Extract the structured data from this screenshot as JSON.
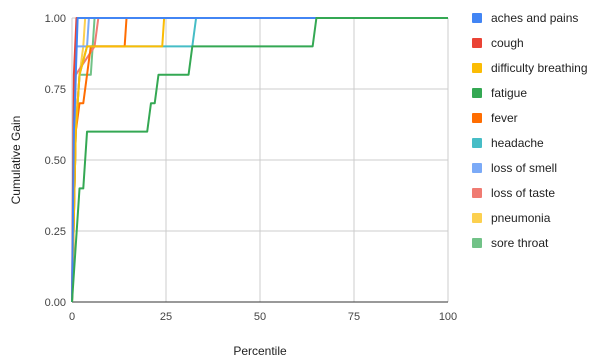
{
  "chart_data": {
    "type": "line",
    "title": "",
    "xlabel": "Percentile",
    "ylabel": "Cumulative Gain",
    "xlim": [
      0,
      100
    ],
    "ylim": [
      0,
      1
    ],
    "x_ticks": [
      "0",
      "25",
      "50",
      "75",
      "100"
    ],
    "y_ticks": [
      "0.00",
      "0.25",
      "0.50",
      "0.75",
      "1.00"
    ],
    "grid": true,
    "legend_position": "right",
    "series": [
      {
        "name": "aches and pains",
        "color": "#4285f4",
        "points": [
          [
            0,
            0
          ],
          [
            0.5,
            0.6
          ],
          [
            1.5,
            1.0
          ],
          [
            100,
            1.0
          ]
        ]
      },
      {
        "name": "cough",
        "color": "#ea4335",
        "points": [
          [
            0,
            0
          ],
          [
            0.5,
            0.8
          ],
          [
            1.2,
            1.0
          ],
          [
            100,
            1.0
          ]
        ]
      },
      {
        "name": "difficulty breathing",
        "color": "#fbbc04",
        "points": [
          [
            0,
            0
          ],
          [
            1,
            0.6
          ],
          [
            2,
            0.8
          ],
          [
            4,
            0.9
          ],
          [
            24,
            0.9
          ],
          [
            24.5,
            1.0
          ],
          [
            100,
            1.0
          ]
        ]
      },
      {
        "name": "fatigue",
        "color": "#34a853",
        "points": [
          [
            0,
            0
          ],
          [
            2,
            0.4
          ],
          [
            3,
            0.4
          ],
          [
            4,
            0.6
          ],
          [
            20,
            0.6
          ],
          [
            21,
            0.7
          ],
          [
            22,
            0.7
          ],
          [
            23,
            0.8
          ],
          [
            31,
            0.8
          ],
          [
            32,
            0.9
          ],
          [
            64,
            0.9
          ],
          [
            65,
            1.0
          ],
          [
            100,
            1.0
          ]
        ]
      },
      {
        "name": "fever",
        "color": "#ff6d01",
        "points": [
          [
            0,
            0
          ],
          [
            1,
            0.6
          ],
          [
            2,
            0.7
          ],
          [
            3,
            0.7
          ],
          [
            4,
            0.8
          ],
          [
            5,
            0.9
          ],
          [
            14,
            0.9
          ],
          [
            14.5,
            1.0
          ],
          [
            100,
            1.0
          ]
        ]
      },
      {
        "name": "headache",
        "color": "#46bdc6",
        "points": [
          [
            0,
            0
          ],
          [
            1,
            0.6
          ],
          [
            2,
            0.8
          ],
          [
            4,
            0.9
          ],
          [
            32,
            0.9
          ],
          [
            33,
            1.0
          ],
          [
            100,
            1.0
          ]
        ]
      },
      {
        "name": "loss of smell",
        "color": "#7baaf7",
        "points": [
          [
            0,
            0
          ],
          [
            1,
            0.9
          ],
          [
            4,
            0.9
          ],
          [
            4.5,
            1.0
          ],
          [
            100,
            1.0
          ]
        ]
      },
      {
        "name": "loss of taste",
        "color": "#f07b72",
        "points": [
          [
            0,
            0
          ],
          [
            1,
            0.8
          ],
          [
            6,
            0.9
          ],
          [
            7,
            1.0
          ],
          [
            100,
            1.0
          ]
        ]
      },
      {
        "name": "pneumonia",
        "color": "#fcd04f",
        "points": [
          [
            0,
            0
          ],
          [
            1,
            0.6
          ],
          [
            2,
            0.8
          ],
          [
            3,
            0.9
          ],
          [
            3.5,
            1.0
          ],
          [
            100,
            1.0
          ]
        ]
      },
      {
        "name": "sore throat",
        "color": "#71c287",
        "points": [
          [
            0,
            0
          ],
          [
            1,
            0.6
          ],
          [
            2,
            0.8
          ],
          [
            5,
            0.8
          ],
          [
            6,
            1.0
          ],
          [
            100,
            1.0
          ]
        ]
      }
    ]
  }
}
